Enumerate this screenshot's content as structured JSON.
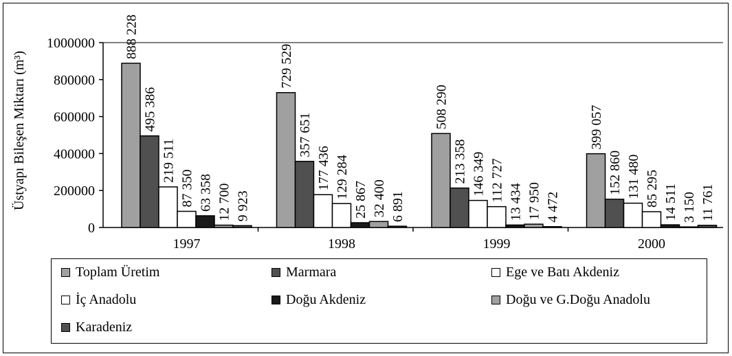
{
  "chart_data": {
    "type": "bar",
    "title": "",
    "xlabel": "",
    "ylabel": "Üstyapı Bileşen Miktarı (m³)",
    "ylim": [
      0,
      1000000
    ],
    "yticks": [
      "0",
      "200000",
      "400000",
      "600000",
      "800000",
      "1000000"
    ],
    "categories": [
      "1997",
      "1998",
      "1999",
      "2000"
    ],
    "legend_position": "bottom",
    "grid": false,
    "series": [
      {
        "name": "Toplam Üretim",
        "color": "#a0a0a0",
        "values": [
          888228,
          729529,
          508290,
          399057
        ],
        "labels": [
          "888 228",
          "729 529",
          "508 290",
          "399 057"
        ]
      },
      {
        "name": "Marmara",
        "color": "#505050",
        "values": [
          495386,
          357651,
          213358,
          152860
        ],
        "labels": [
          "495 386",
          "357 651",
          "213 358",
          "152 860"
        ]
      },
      {
        "name": "Ege ve Batı Akdeniz",
        "color": "#ffffff",
        "values": [
          219511,
          177436,
          146349,
          131480
        ],
        "labels": [
          "219 511",
          "177 436",
          "146 349",
          "131 480"
        ]
      },
      {
        "name": "İç Anadolu",
        "color": "#ffffff",
        "values": [
          87350,
          129284,
          112727,
          85295
        ],
        "labels": [
          "87 350",
          "129 284",
          "112 727",
          "85 295"
        ]
      },
      {
        "name": "Doğu Akdeniz",
        "color": "#1a1a1a",
        "values": [
          63358,
          25867,
          13434,
          14511
        ],
        "labels": [
          "63 358",
          "25 867",
          "13 434",
          "14 511"
        ]
      },
      {
        "name": "Doğu ve G.Doğu Anadolu",
        "color": "#a0a0a0",
        "values": [
          12700,
          32400,
          17950,
          3150
        ],
        "labels": [
          "12 700",
          "32 400",
          "17 950",
          "3 150"
        ]
      },
      {
        "name": "Karadeniz",
        "color": "#505050",
        "values": [
          9923,
          6891,
          4472,
          11761
        ],
        "labels": [
          "9 923",
          "6 891",
          "4 472",
          "11 761"
        ]
      }
    ]
  }
}
